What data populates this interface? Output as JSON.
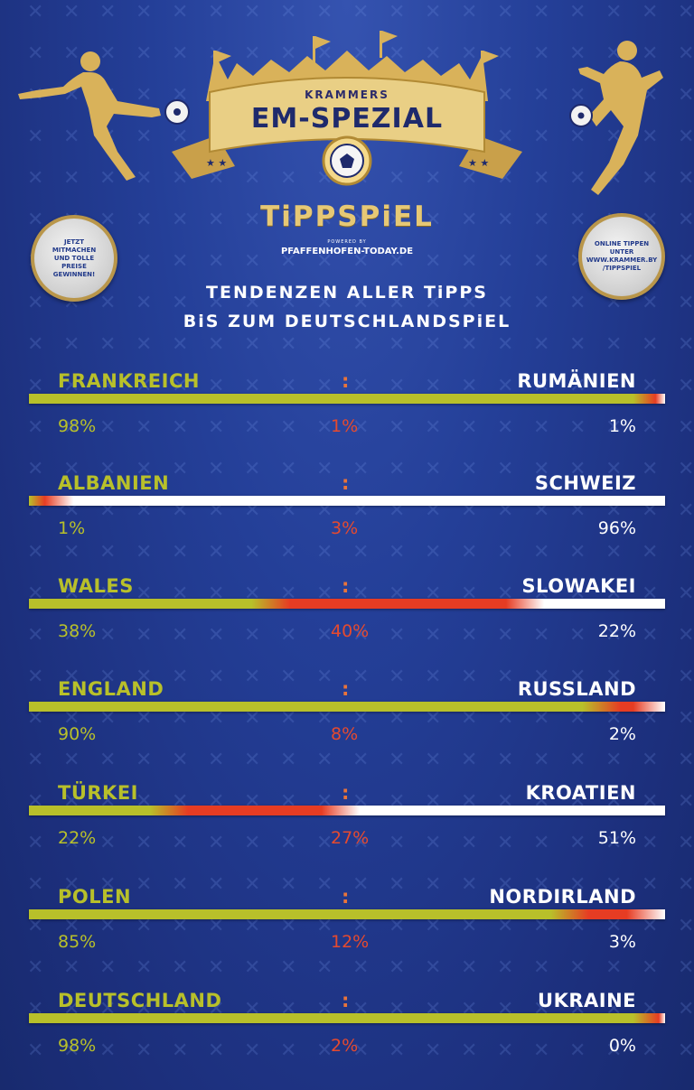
{
  "header": {
    "brand": "KRAMMERS",
    "title": "EM-SPEZIAL",
    "game": "TiPPSPiEL",
    "powered": "POWERED BY",
    "sponsor": "PFAFFENHOFEN-TODAY.DE",
    "subtitle_line1": "TENDENZEN ALLER TiPPS",
    "subtitle_line2": "BiS ZUM DEUTSCHLANDSPiEL"
  },
  "badges": {
    "left": "JETZT MITMACHEN UND TOLLE PREISE GEWINNEN!",
    "right": "ONLINE TIPPEN UNTER WWW.KRAMMER.BY /TIPPSPIEL"
  },
  "colors": {
    "home": "#b8c02a",
    "draw": "#e63c23",
    "away": "#ffffff",
    "gold": "#d9b25a"
  },
  "icons": [
    "player-left-icon",
    "player-right-icon",
    "football-icon",
    "star-icon",
    "fans-banner-icon"
  ],
  "separator": ":",
  "matches": [
    {
      "home": "FRANKREICH",
      "away": "RUMÄNIEN",
      "home_pct": "98%",
      "draw_pct": "1%",
      "away_pct": "1%",
      "home_share": 98,
      "draw_share": 1,
      "away_share": 1
    },
    {
      "home": "ALBANIEN",
      "away": "SCHWEIZ",
      "home_pct": "1%",
      "draw_pct": "3%",
      "away_pct": "96%",
      "home_share": 1,
      "draw_share": 3,
      "away_share": 96
    },
    {
      "home": "WALES",
      "away": "SLOWAKEI",
      "home_pct": "38%",
      "draw_pct": "40%",
      "away_pct": "22%",
      "home_share": 38,
      "draw_share": 40,
      "away_share": 22
    },
    {
      "home": "ENGLAND",
      "away": "RUSSLAND",
      "home_pct": "90%",
      "draw_pct": "8%",
      "away_pct": "2%",
      "home_share": 90,
      "draw_share": 8,
      "away_share": 2
    },
    {
      "home": "TÜRKEI",
      "away": "KROATIEN",
      "home_pct": "22%",
      "draw_pct": "27%",
      "away_pct": "51%",
      "home_share": 22,
      "draw_share": 27,
      "away_share": 51
    },
    {
      "home": "POLEN",
      "away": "NORDIRLAND",
      "home_pct": "85%",
      "draw_pct": "12%",
      "away_pct": "3%",
      "home_share": 85,
      "draw_share": 12,
      "away_share": 3
    },
    {
      "home": "DEUTSCHLAND",
      "away": "UKRAINE",
      "home_pct": "98%",
      "draw_pct": "2%",
      "away_pct": "0%",
      "home_share": 98,
      "draw_share": 2,
      "away_share": 0
    }
  ]
}
